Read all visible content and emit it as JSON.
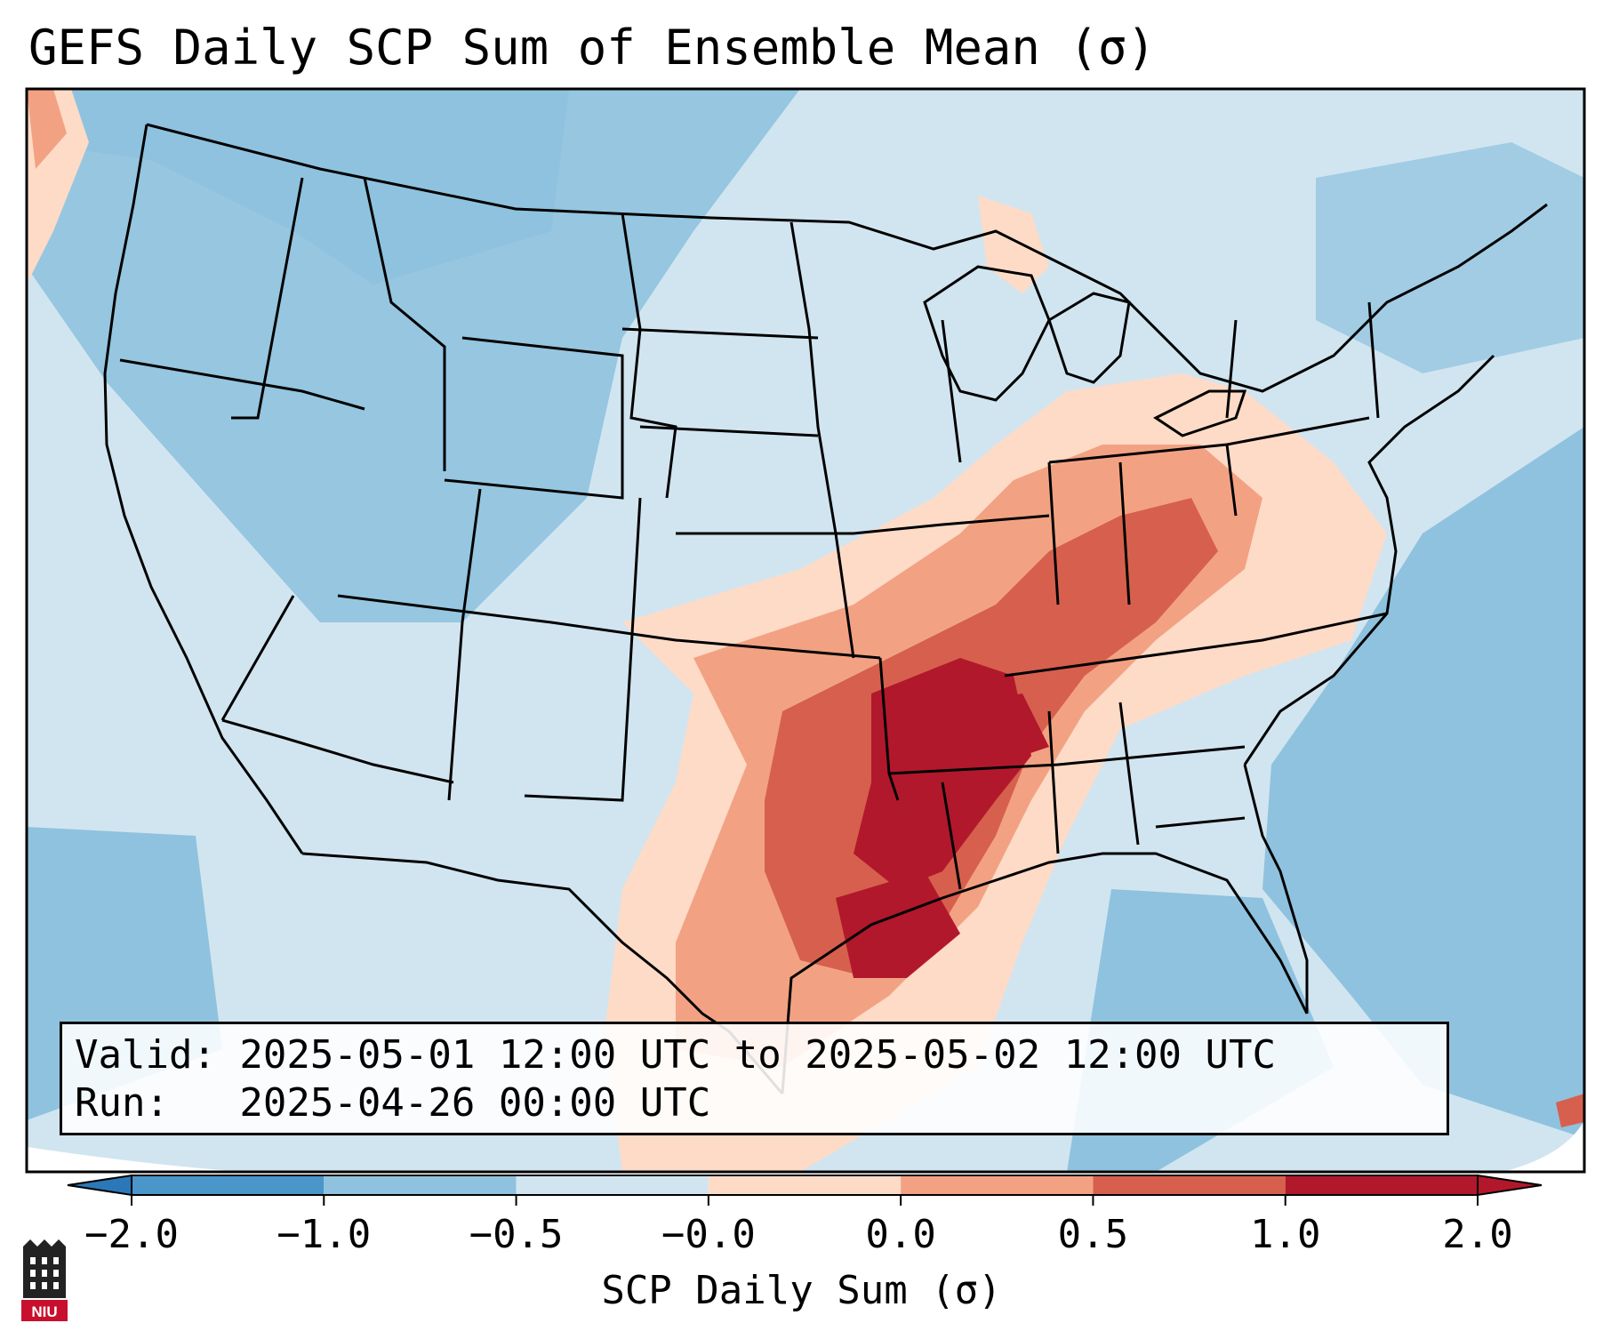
{
  "title": "GEFS Daily SCP Sum of Ensemble Mean (σ)",
  "info": {
    "valid_line": "Valid: 2025-05-01 12:00 UTC to 2025-05-02 12:00 UTC",
    "run_line": "Run:   2025-04-26 00:00 UTC"
  },
  "colorbar": {
    "label": "SCP Daily Sum (σ)",
    "ticks": [
      "−2.0",
      "−1.0",
      "−0.5",
      "−0.0",
      "0.0",
      "0.5",
      "1.0",
      "2.0"
    ],
    "colors": [
      "#2b78b8",
      "#4a95c9",
      "#8fc2de",
      "#d1e5f0",
      "#fddbc7",
      "#f2a283",
      "#d6604d",
      "#b2182b"
    ],
    "extend": "both"
  },
  "map": {
    "region": "Contiguous United States",
    "background_color": "#d1e5f0",
    "ocean_color": "#8fc2de",
    "max_anomaly_areas": [
      "Arkansas",
      "Mississippi",
      "Tennessee",
      "East Texas",
      "Louisiana"
    ]
  },
  "logo": {
    "text": "NIU",
    "color": "#c8102e"
  }
}
